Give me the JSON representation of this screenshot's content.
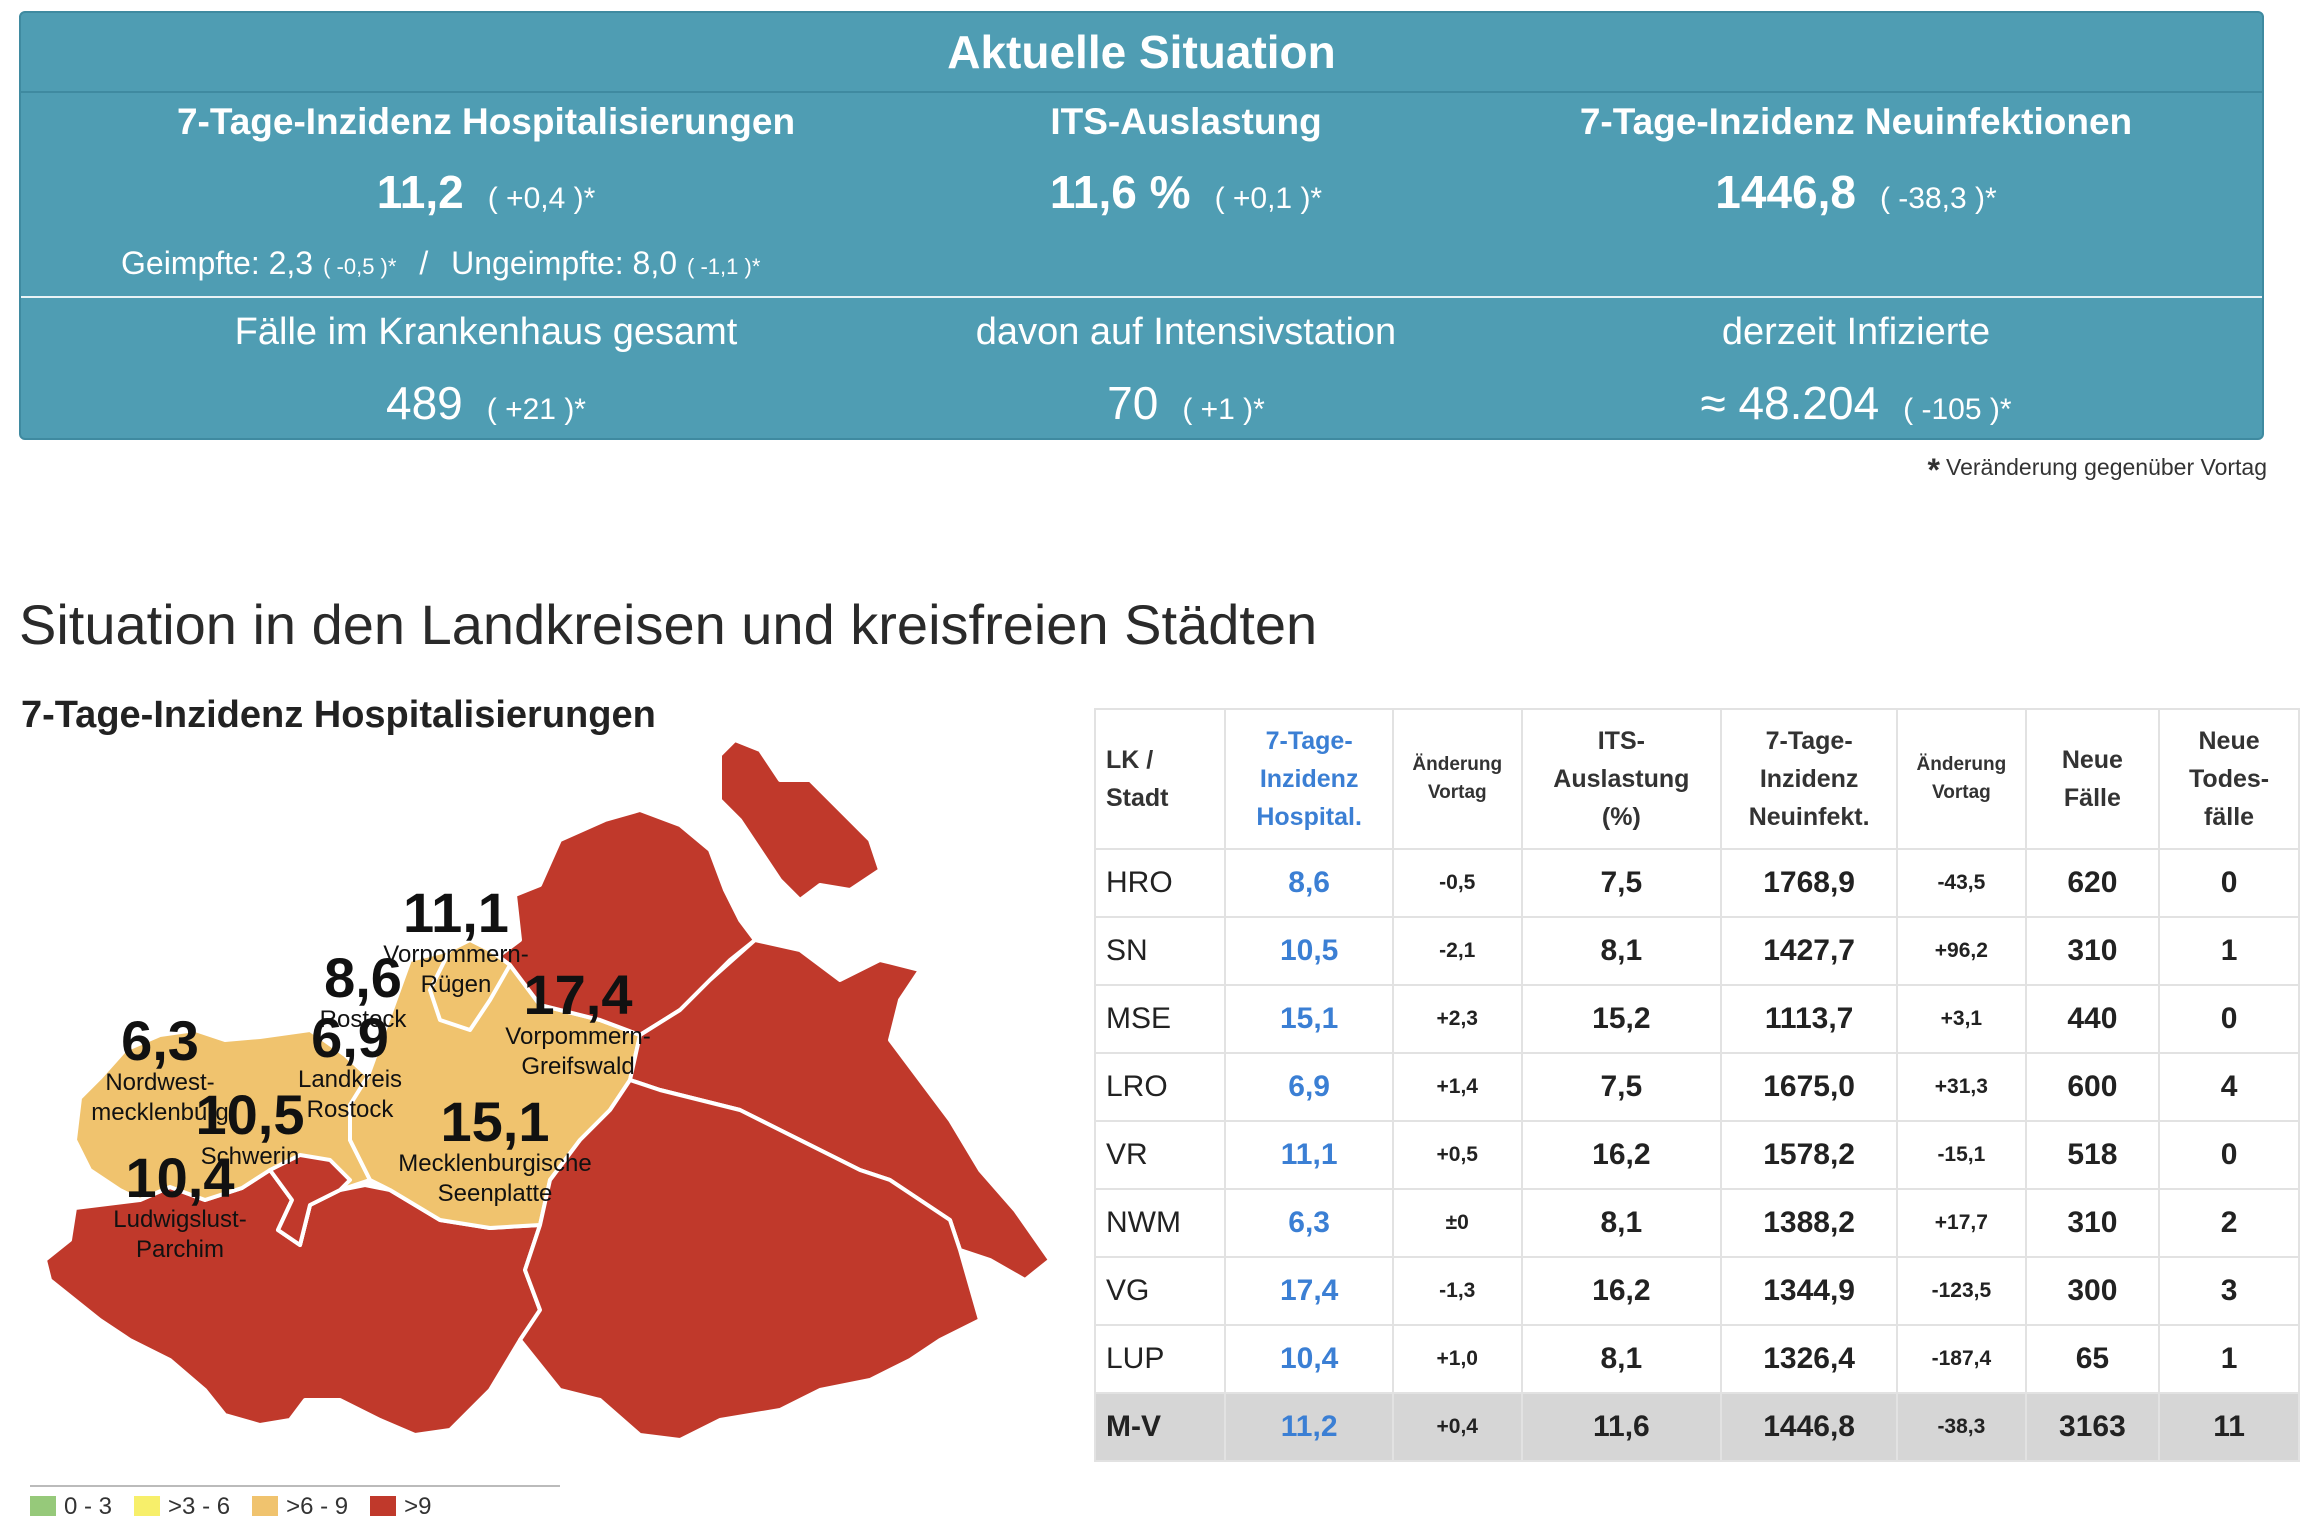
{
  "panel": {
    "title": "Aktuelle Situation",
    "hosp": {
      "label": "7-Tage-Inzidenz Hospitalisierungen",
      "value": "11,2",
      "delta": "( +0,4 )*"
    },
    "its": {
      "label": "ITS-Auslastung",
      "value": "11,6 %",
      "delta": "( +0,1 )*"
    },
    "newinf": {
      "label": "7-Tage-Inzidenz Neuinfektionen",
      "value": "1446,8",
      "delta": "( -38,3 )*"
    },
    "vaccinated": "Geimpfte: 2,3",
    "vaccinated_delta": "( -0,5 )*",
    "separator": "/",
    "unvaccinated": "Ungeimpfte: 8,0",
    "unvaccinated_delta": "( -1,1 )*",
    "hospital_total": {
      "label": "Fälle im Krankenhaus gesamt",
      "value": "489",
      "delta": "( +21 )*"
    },
    "icu": {
      "label": "davon auf Intensivstation",
      "value": "70",
      "delta": "( +1 )*"
    },
    "infected": {
      "label": "derzeit Infizierte",
      "value": "≈ 48.204",
      "delta": "( -105 )*"
    }
  },
  "footnote": {
    "star": "*",
    "text": "Veränderung gegenüber Vortag"
  },
  "section_title": "Situation in den Landkreisen und kreisfreien Städten",
  "map": {
    "title": "7-Tage-Inzidenz Hospitalisierungen",
    "colors": {
      "high": "#c0392b",
      "mid": "#f0c36e",
      "border": "#ffffff",
      "low": "#96c97a",
      "lowmid": "#f7ef6a"
    },
    "regions": [
      {
        "value": "11,1",
        "name1": "Vorpommern-",
        "name2": "Rügen"
      },
      {
        "value": "8,6",
        "name1": "Rostock",
        "name2": ""
      },
      {
        "value": "17,4",
        "name1": "Vorpommern-",
        "name2": "Greifswald"
      },
      {
        "value": "6,3",
        "name1": "Nordwest-",
        "name2": "mecklenburg"
      },
      {
        "value": "6,9",
        "name1": "Landkreis",
        "name2": "Rostock"
      },
      {
        "value": "10,5",
        "name1": "Schwerin",
        "name2": ""
      },
      {
        "value": "15,1",
        "name1": "Mecklenburgische",
        "name2": "Seenplatte"
      },
      {
        "value": "10,4",
        "name1": "Ludwigslust-",
        "name2": "Parchim"
      }
    ],
    "legend": [
      {
        "label": "0 - 3",
        "color": "#96c97a"
      },
      {
        "label": ">3 - 6",
        "color": "#f7ef6a"
      },
      {
        "label": ">6 - 9",
        "color": "#f0c36e"
      },
      {
        "label": ">9",
        "color": "#c0392b"
      }
    ]
  },
  "table": {
    "headers": {
      "lk": [
        "LK /",
        "Stadt"
      ],
      "hosp": [
        "7-Tage-",
        "Inzidenz",
        "Hospital."
      ],
      "chg1": [
        "Änderung",
        "Vortag"
      ],
      "its": [
        "ITS-",
        "Auslastung",
        "(%)"
      ],
      "inf": [
        "7-Tage-",
        "Inzidenz",
        "Neuinfekt."
      ],
      "chg2": [
        "Änderung",
        "Vortag"
      ],
      "new": [
        "Neue",
        "Fälle"
      ],
      "deaths": [
        "Neue",
        "Todes-",
        "fälle"
      ]
    },
    "rows": [
      {
        "lk": "HRO",
        "hosp": "8,6",
        "chg1": "-0,5",
        "its": "7,5",
        "inf": "1768,9",
        "chg2": "-43,5",
        "new": "620",
        "deaths": "0"
      },
      {
        "lk": "SN",
        "hosp": "10,5",
        "chg1": "-2,1",
        "its": "8,1",
        "inf": "1427,7",
        "chg2": "+96,2",
        "new": "310",
        "deaths": "1"
      },
      {
        "lk": "MSE",
        "hosp": "15,1",
        "chg1": "+2,3",
        "its": "15,2",
        "inf": "1113,7",
        "chg2": "+3,1",
        "new": "440",
        "deaths": "0"
      },
      {
        "lk": "LRO",
        "hosp": "6,9",
        "chg1": "+1,4",
        "its": "7,5",
        "inf": "1675,0",
        "chg2": "+31,3",
        "new": "600",
        "deaths": "4"
      },
      {
        "lk": "VR",
        "hosp": "11,1",
        "chg1": "+0,5",
        "its": "16,2",
        "inf": "1578,2",
        "chg2": "-15,1",
        "new": "518",
        "deaths": "0"
      },
      {
        "lk": "NWM",
        "hosp": "6,3",
        "chg1": "±0",
        "its": "8,1",
        "inf": "1388,2",
        "chg2": "+17,7",
        "new": "310",
        "deaths": "2"
      },
      {
        "lk": "VG",
        "hosp": "17,4",
        "chg1": "-1,3",
        "its": "16,2",
        "inf": "1344,9",
        "chg2": "-123,5",
        "new": "300",
        "deaths": "3"
      },
      {
        "lk": "LUP",
        "hosp": "10,4",
        "chg1": "+1,0",
        "its": "8,1",
        "inf": "1326,4",
        "chg2": "-187,4",
        "new": "65",
        "deaths": "1"
      }
    ],
    "total": {
      "lk": "M-V",
      "hosp": "11,2",
      "chg1": "+0,4",
      "its": "11,6",
      "inf": "1446,8",
      "chg2": "-38,3",
      "new": "3163",
      "deaths": "11"
    }
  }
}
